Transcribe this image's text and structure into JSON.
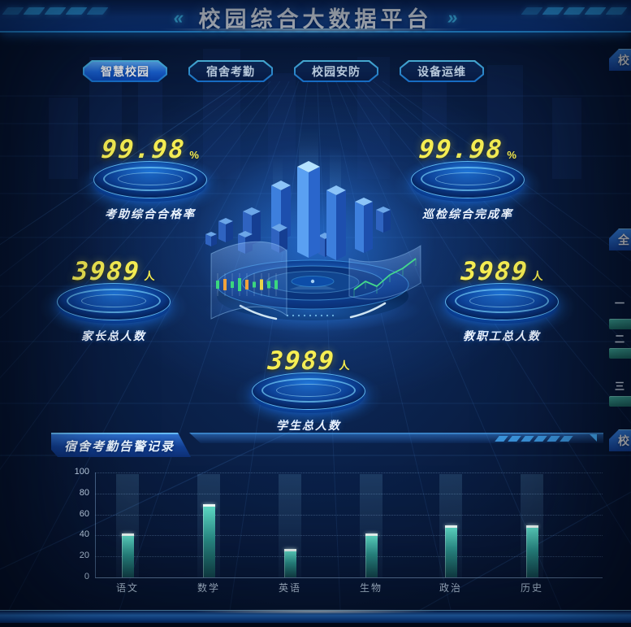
{
  "header": {
    "title": "校园综合大数据平台",
    "left_chevron": "«",
    "right_chevron": "»"
  },
  "tabs": [
    {
      "label": "智慧校园",
      "active": true
    },
    {
      "label": "宿舍考勤",
      "active": false
    },
    {
      "label": "校园安防",
      "active": false
    },
    {
      "label": "设备运维",
      "active": false
    }
  ],
  "stats": [
    {
      "value": "99.98",
      "unit": "%",
      "label": "考助综合合格率"
    },
    {
      "value": "99.98",
      "unit": "%",
      "label": "巡检综合完成率"
    },
    {
      "value": "3989",
      "unit": "人",
      "label": "家长总人数"
    },
    {
      "value": "3989",
      "unit": "人",
      "label": "教职工总人数"
    },
    {
      "value": "3989",
      "unit": "人",
      "label": "学生总人数"
    }
  ],
  "alarm_panel": {
    "title": "宿舍考勤告警记录"
  },
  "chart_data": {
    "type": "bar",
    "title": "宿舍考勤告警记录",
    "categories": [
      "语文",
      "数学",
      "英语",
      "生物",
      "政治",
      "历史"
    ],
    "values": [
      42,
      70,
      27,
      42,
      50,
      50
    ],
    "yticks": [
      0,
      20,
      40,
      60,
      80,
      100
    ],
    "ylim": [
      0,
      100
    ],
    "xlabel": "",
    "ylabel": "",
    "grid": "dotted-horizontal",
    "legend": "none",
    "bar_color": "#3fc8b4"
  },
  "right_edge": {
    "top_panel_title": "校",
    "middle_panel_title": "全",
    "bottom_panel_title": "校",
    "rank_items": [
      {
        "text": "一"
      },
      {
        "text": "二"
      },
      {
        "text": "三"
      }
    ]
  },
  "colors": {
    "accent_cyan": "#3fd0ff",
    "number_yellow": "#f6ee53",
    "bar_teal": "#3fc8b4",
    "active_tab_blue": "#1b67dd",
    "background_navy": "#0a2048"
  }
}
